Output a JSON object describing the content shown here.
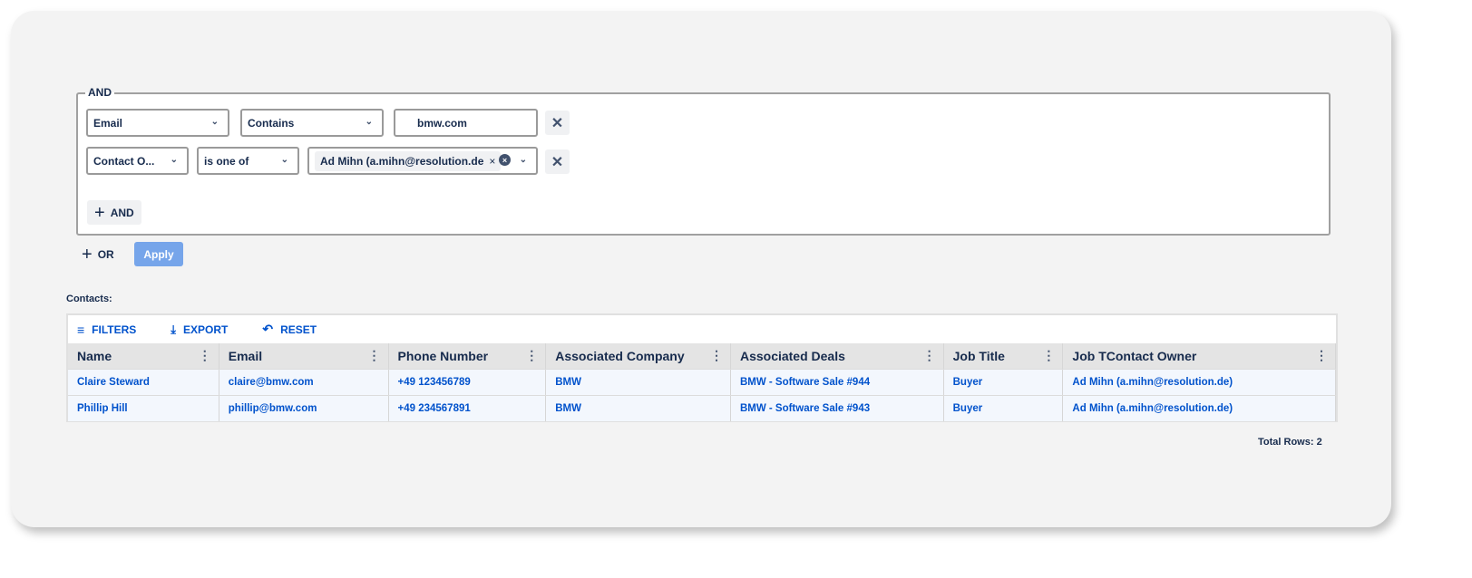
{
  "filter": {
    "group_label": "AND",
    "rows": [
      {
        "field": "Email",
        "operator": "Contains",
        "value": "bmw.com"
      },
      {
        "field": "Contact O...",
        "operator": "is one of",
        "chip": "Ad Mihn (a.mihn@resolution.de"
      }
    ],
    "add_and": "AND",
    "add_or": "OR",
    "apply": "Apply"
  },
  "contacts_label": "Contacts:",
  "toolbar": {
    "filters": "FILTERS",
    "export": "EXPORT",
    "reset": "RESET"
  },
  "table": {
    "columns": [
      "Name",
      "Email",
      "Phone Number",
      "Associated Company",
      "Associated Deals",
      "Job Title",
      "Job TContact Owner"
    ],
    "rows": [
      [
        "Claire Steward",
        "claire@bmw.com",
        "+49 123456789",
        "BMW",
        "BMW - Software Sale #944",
        "Buyer",
        "Ad Mihn (a.mihn@resolution.de)"
      ],
      [
        "Phillip Hill",
        "phillip@bmw.com",
        "+49 234567891",
        "BMW",
        "BMW - Software Sale #943",
        "Buyer",
        "Ad Mihn (a.mihn@resolution.de)"
      ]
    ]
  },
  "total_rows": "Total Rows: 2",
  "colors": {
    "accent": "#0052cc",
    "apply": "#76a5ea",
    "text": "#172b4d"
  }
}
